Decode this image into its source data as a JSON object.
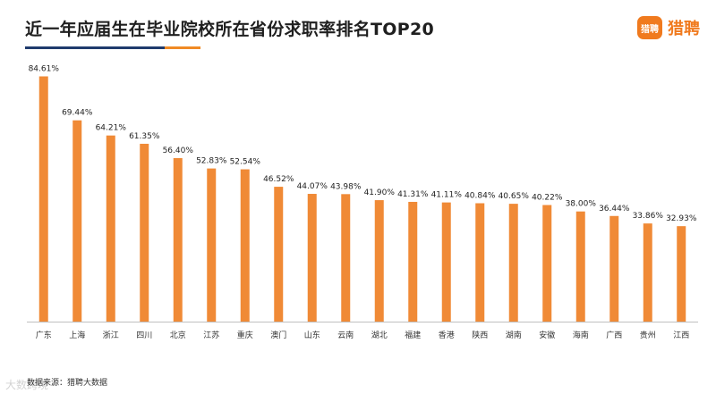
{
  "header": {
    "title": "近一年应届生在毕业院校所在省份求职率排名TOP20"
  },
  "brand": {
    "mark_text": "猎聘",
    "name": "猎聘",
    "color": "#f07a1e"
  },
  "footer": {
    "source": "数据来源：猎聘大数据",
    "watermark": "大数跨境"
  },
  "chart_data": {
    "type": "bar",
    "title": "近一年应届生在毕业院校所在省份求职率排名TOP20",
    "xlabel": "",
    "ylabel": "",
    "ylim": [
      0,
      90
    ],
    "grid": false,
    "value_format": "percent",
    "bar_color": "#f08a36",
    "categories": [
      "广东",
      "上海",
      "浙江",
      "四川",
      "北京",
      "江苏",
      "重庆",
      "澳门",
      "山东",
      "云南",
      "湖北",
      "福建",
      "香港",
      "陕西",
      "湖南",
      "安徽",
      "海南",
      "广西",
      "贵州",
      "江西"
    ],
    "values": [
      84.61,
      69.44,
      64.21,
      61.35,
      56.4,
      52.83,
      52.54,
      46.52,
      44.07,
      43.98,
      41.9,
      41.31,
      41.11,
      40.84,
      40.65,
      40.22,
      38.0,
      36.44,
      33.86,
      32.93
    ],
    "value_labels": [
      "84.61%",
      "69.44%",
      "64.21%",
      "61.35%",
      "56.40%",
      "52.83%",
      "52.54%",
      "46.52%",
      "44.07%",
      "43.98%",
      "41.90%",
      "41.31%",
      "41.11%",
      "40.84%",
      "40.65%",
      "40.22%",
      "38.00%",
      "36.44%",
      "33.86%",
      "32.93%"
    ]
  }
}
